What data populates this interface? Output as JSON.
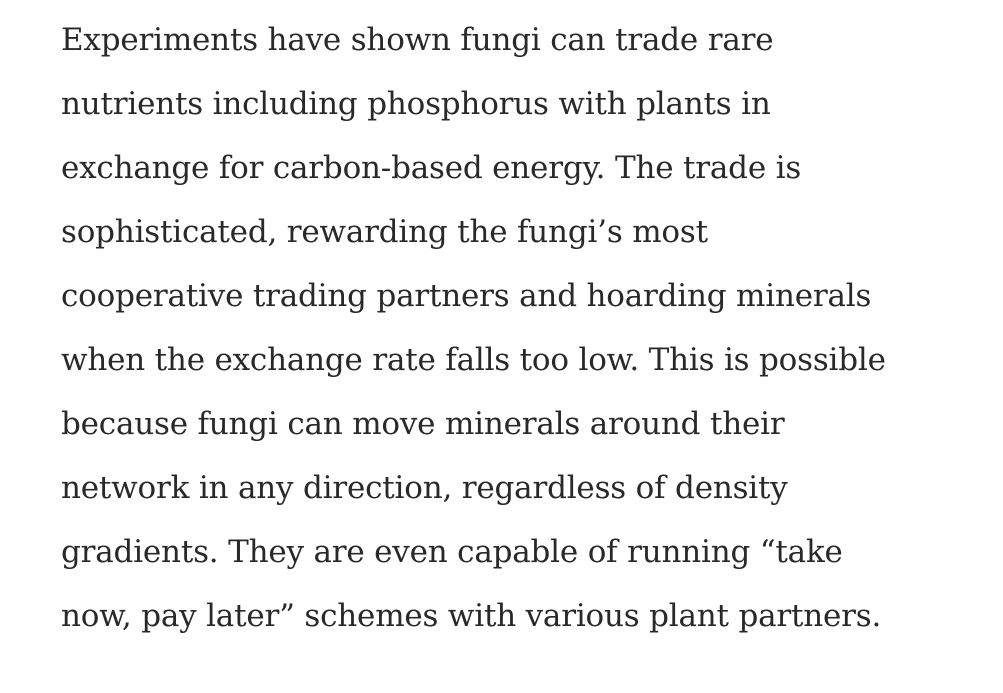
{
  "article": {
    "paragraph_lines": [
      "Experiments have shown fungi can trade rare",
      "nutrients including phosphorus with plants in",
      "exchange for carbon-based energy. The trade is",
      "sophisticated, rewarding the fungi’s most",
      "cooperative trading partners and hoarding minerals",
      "when the exchange rate falls too low. This is possible",
      "because fungi can move minerals around their",
      "network in any direction, regardless of density",
      "gradients. They are even capable of running “take",
      "now, pay later” schemes with various plant partners."
    ]
  }
}
